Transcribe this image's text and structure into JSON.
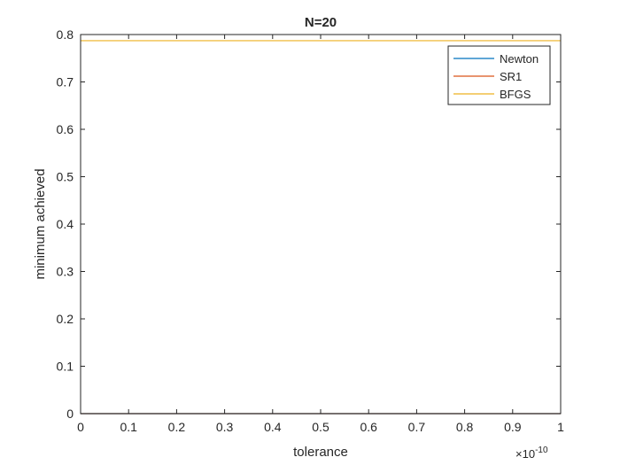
{
  "chart_data": {
    "type": "line",
    "title": "N=20",
    "xlabel": "tolerance",
    "ylabel": "minimum achieved",
    "x_exponent_base": "×10",
    "x_exponent_power": "-10",
    "xlim": [
      0,
      1
    ],
    "ylim": [
      0,
      0.8
    ],
    "x_ticks": [
      0,
      0.1,
      0.2,
      0.3,
      0.4,
      0.5,
      0.6,
      0.7,
      0.8,
      0.9,
      1
    ],
    "x_tick_labels": [
      "0",
      "0.1",
      "0.2",
      "0.3",
      "0.4",
      "0.5",
      "0.6",
      "0.7",
      "0.8",
      "0.9",
      "1"
    ],
    "y_ticks": [
      0,
      0.1,
      0.2,
      0.3,
      0.4,
      0.5,
      0.6,
      0.7,
      0.8
    ],
    "y_tick_labels": [
      "0",
      "0.1",
      "0.2",
      "0.3",
      "0.4",
      "0.5",
      "0.6",
      "0.7",
      "0.8"
    ],
    "grid": false,
    "legend_position": "top-right",
    "series": [
      {
        "name": "Newton",
        "color": "#0072BD",
        "x": [
          0,
          1
        ],
        "y": [
          0.0,
          0.0
        ]
      },
      {
        "name": "SR1",
        "color": "#D95319",
        "x": [
          0,
          1
        ],
        "y": [
          0.0,
          0.0
        ]
      },
      {
        "name": "BFGS",
        "color": "#EDB120",
        "x": [
          0,
          1
        ],
        "y": [
          0.787,
          0.787
        ]
      }
    ]
  }
}
